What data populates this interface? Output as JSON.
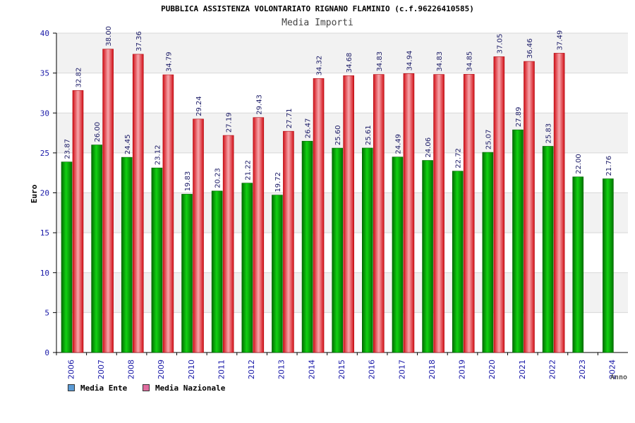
{
  "title": "PUBBLICA ASSISTENZA VOLONTARIATO RIGNANO FLAMINIO (c.f.96226410585)",
  "subtitle": "Media Importi",
  "chart_data": {
    "type": "bar",
    "title": "PUBBLICA ASSISTENZA VOLONTARIATO RIGNANO FLAMINIO (c.f.96226410585)",
    "subtitle": "Media Importi",
    "xlabel": "Anno",
    "ylabel": "Euro",
    "ylim": [
      0,
      40
    ],
    "yticks": [
      0,
      5,
      10,
      15,
      20,
      25,
      30,
      35,
      40
    ],
    "grid": true,
    "legend_position": "bottom-left",
    "categories": [
      "2006",
      "2007",
      "2008",
      "2009",
      "2010",
      "2011",
      "2012",
      "2013",
      "2014",
      "2015",
      "2016",
      "2017",
      "2018",
      "2019",
      "2020",
      "2021",
      "2022",
      "2023",
      "2024"
    ],
    "series": [
      {
        "name": "Media Ente",
        "color": "#00b400",
        "legend_color": "#5b9bd5",
        "values": [
          23.87,
          26.0,
          24.45,
          23.12,
          19.83,
          20.23,
          21.22,
          19.72,
          26.47,
          25.6,
          25.61,
          24.49,
          24.06,
          22.72,
          25.07,
          27.89,
          25.83,
          22.0,
          21.76
        ],
        "labels": [
          "23.87",
          "26.00",
          "24.45",
          "23.12",
          "19.83",
          "20.23",
          "21.22",
          "19.72",
          "26.47",
          "25.60",
          "25.61",
          "24.49",
          "24.06",
          "22.72",
          "25.07",
          "27.89",
          "25.83",
          "22.00",
          "21.76"
        ]
      },
      {
        "name": "Media Nazionale",
        "color": "#e8202a",
        "legend_color": "#e06c9f",
        "values": [
          32.82,
          38.0,
          37.36,
          34.79,
          29.24,
          27.19,
          29.43,
          27.71,
          34.32,
          34.68,
          34.83,
          34.94,
          34.83,
          34.85,
          37.05,
          36.46,
          37.49,
          null,
          null
        ],
        "labels": [
          "32.82",
          "38.00",
          "37.36",
          "34.79",
          "29.24",
          "27.19",
          "29.43",
          "27.71",
          "34.32",
          "34.68",
          "34.83",
          "34.94",
          "34.83",
          "34.85",
          "37.05",
          "36.46",
          "37.49",
          "",
          ""
        ]
      }
    ]
  }
}
